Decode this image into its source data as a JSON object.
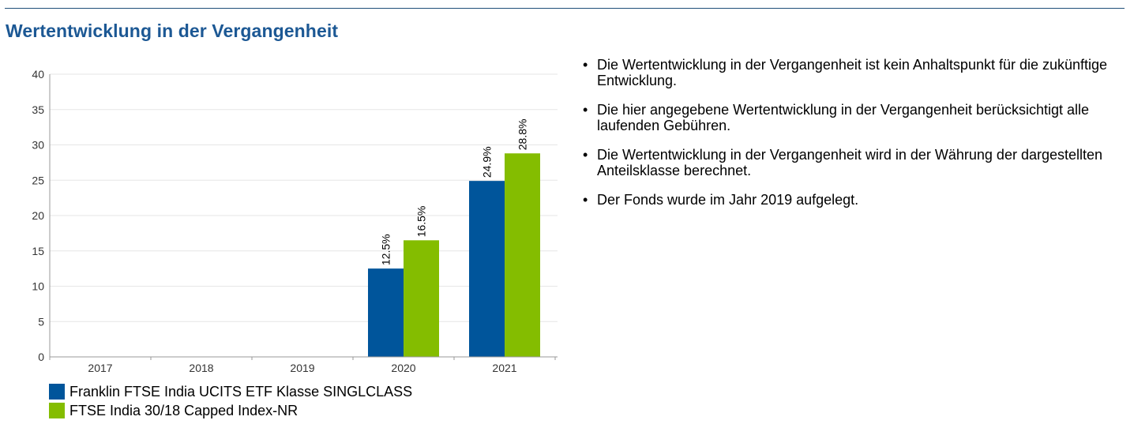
{
  "page": {
    "title": "Wertentwicklung in der Vergangenheit"
  },
  "colors": {
    "rule": "#1f4e79",
    "title": "#1c5894",
    "series_fund": "#00559b",
    "series_index": "#84bd00",
    "grid": "#e6e6e6",
    "axis": "#999999"
  },
  "chart_data": {
    "type": "bar",
    "title": "",
    "xlabel": "",
    "ylabel": "",
    "categories": [
      "2017",
      "2018",
      "2019",
      "2020",
      "2021"
    ],
    "ylim": [
      0,
      40
    ],
    "yticks": [
      0,
      5,
      10,
      15,
      20,
      25,
      30,
      35,
      40
    ],
    "grid": true,
    "legend_position": "bottom-left",
    "series": [
      {
        "name": "Franklin FTSE India UCITS ETF Klasse SINGLCLASS",
        "color": "#00559b",
        "values": [
          null,
          null,
          null,
          12.5,
          24.9
        ],
        "labels": [
          "",
          "",
          "",
          "12.5%",
          "24.9%"
        ]
      },
      {
        "name": "FTSE India 30/18 Capped Index-NR",
        "color": "#84bd00",
        "values": [
          null,
          null,
          null,
          16.5,
          28.8
        ],
        "labels": [
          "",
          "",
          "",
          "16.5%",
          "28.8%"
        ]
      }
    ]
  },
  "notes": [
    "Die Wertentwicklung in der Vergangenheit ist kein Anhaltspunkt für die zukünftige Entwicklung.",
    "Die hier angegebene Wertentwicklung in der Vergangenheit berücksichtigt alle laufenden Gebühren.",
    "Die Wertentwicklung in der Vergangenheit wird in der Währung der dargestellten Anteilsklasse berechnet.",
    "Der Fonds wurde im Jahr 2019 aufgelegt."
  ],
  "bullet_char": "•"
}
